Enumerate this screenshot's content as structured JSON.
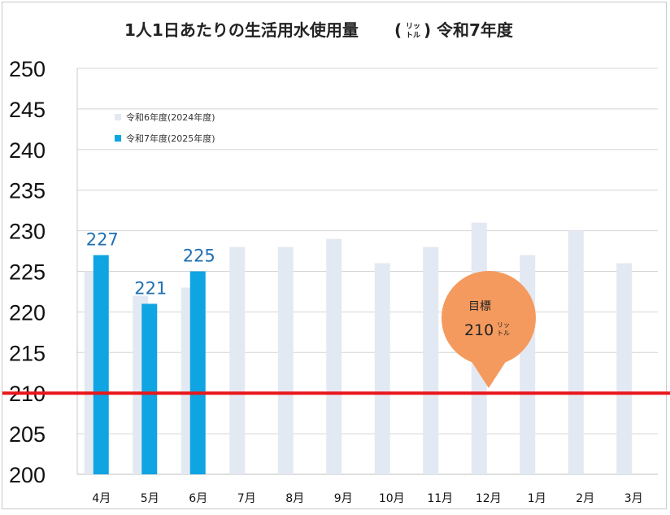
{
  "chart_data": {
    "type": "bar",
    "title": "1人1日あたりの生活用水使用量",
    "title_unit": "リットル",
    "title_unit_top": "リッ",
    "title_unit_bottom": "トル",
    "title_suffix": "令和7年度",
    "categories": [
      "4月",
      "5月",
      "6月",
      "7月",
      "8月",
      "9月",
      "10月",
      "11月",
      "12月",
      "1月",
      "2月",
      "3月"
    ],
    "series": [
      {
        "name": "令和6年度(2024年度)",
        "color": "#e3e9f2",
        "values": [
          225,
          222,
          223,
          228,
          228,
          229,
          226,
          228,
          231,
          227,
          230,
          226
        ]
      },
      {
        "name": "令和7年度(2025年度)",
        "color": "#0fa4e2",
        "values": [
          227,
          221,
          225,
          null,
          null,
          null,
          null,
          null,
          null,
          null,
          null,
          null
        ],
        "data_labels": [
          "227",
          "221",
          "225"
        ]
      }
    ],
    "ylim": [
      200,
      250
    ],
    "yticks": [
      "200",
      "205",
      "210",
      "215",
      "220",
      "225",
      "230",
      "235",
      "240",
      "245",
      "250"
    ],
    "grid": true,
    "legend_position": "top-left",
    "target": {
      "value": 210,
      "line_color": "#e8161b",
      "label": "目標",
      "value_text": "210",
      "unit_top": "リッ",
      "unit_bottom": "トル",
      "bubble_color": "#f59a5e"
    },
    "xlabel": "",
    "ylabel": ""
  }
}
